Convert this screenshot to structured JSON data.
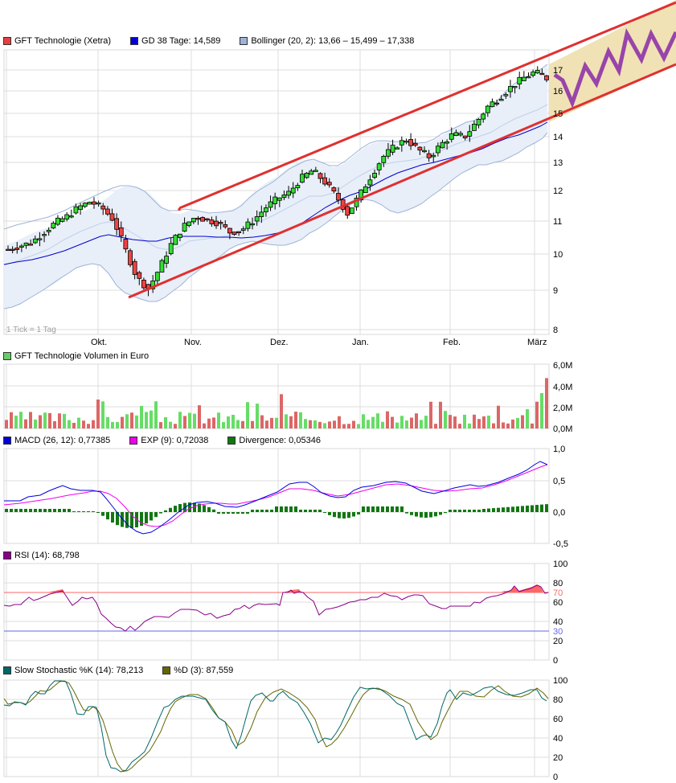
{
  "price_panel": {
    "legend": [
      {
        "label": "GFT Technologie (Xetra)",
        "color": "#e84040"
      },
      {
        "label": "GD 38 Tage: 14,589",
        "color": "#0000dd"
      },
      {
        "label": "Bollinger (20, 2): 13,66 – 15,499 – 17,338",
        "color": "#9fb3d8"
      }
    ],
    "tick_note": "1 Tick = 1 Tag",
    "y_ticks": [
      "17",
      "16",
      "15",
      "14",
      "13",
      "12",
      "11",
      "10",
      "9",
      "8"
    ],
    "x_ticks": [
      "Okt.",
      "Nov.",
      "Dez.",
      "Jan.",
      "Feb.",
      "März"
    ]
  },
  "volume_panel": {
    "legend": [
      {
        "label": "GFT Technologie Volumen in Euro",
        "color": "#66cc66"
      }
    ],
    "y_ticks": [
      "6,0M",
      "4,0M",
      "2,0M",
      "0,0M"
    ]
  },
  "macd_panel": {
    "legend": [
      {
        "label": "MACD (26, 12): 0,77385",
        "color": "#0000dd"
      },
      {
        "label": "EXP (9): 0,72038",
        "color": "#ee00ee"
      },
      {
        "label": "Divergence: 0,05346",
        "color": "#117711"
      }
    ],
    "y_ticks": [
      "1,0",
      "0,5",
      "0,0",
      "-0,5"
    ]
  },
  "rsi_panel": {
    "legend": [
      {
        "label": "RSI (14): 68,798",
        "color": "#880088"
      }
    ],
    "y_ticks": [
      "100",
      "80",
      "70",
      "60",
      "40",
      "30",
      "20",
      "0"
    ]
  },
  "stoch_panel": {
    "legend": [
      {
        "label": "Slow Stochastic %K (14): 78,213",
        "color": "#006666"
      },
      {
        "label": "%D (3): 87,559",
        "color": "#666600"
      }
    ],
    "y_ticks": [
      "100",
      "80",
      "60",
      "40",
      "20",
      "0"
    ]
  },
  "chart_data": [
    {
      "type": "candlestick",
      "title": "GFT Technologie (Xetra)",
      "xlabel": "",
      "ylabel": "",
      "x_ticks": [
        "Okt.",
        "Nov.",
        "Dez.",
        "Jan.",
        "Feb.",
        "März"
      ],
      "ylim": [
        8,
        17.5
      ],
      "y_scale": "log",
      "grid": true,
      "series": [
        {
          "name": "GFT Technologie (Xetra)",
          "approx_close_path": [
            10.1,
            10.2,
            10.3,
            10.6,
            10.9,
            11.1,
            11.4,
            11.6,
            11.4,
            11.0,
            10.1,
            9.3,
            9.0,
            9.6,
            10.3,
            10.8,
            11.1,
            11.0,
            10.9,
            10.6,
            10.7,
            11.0,
            11.4,
            11.7,
            11.9,
            12.4,
            12.7,
            12.3,
            11.8,
            11.2,
            11.8,
            12.5,
            13.2,
            13.6,
            13.9,
            13.5,
            13.2,
            13.7,
            14.1,
            14.0,
            14.6,
            15.3,
            15.7,
            16.2,
            16.6,
            16.9,
            16.6
          ],
          "last_value": 16.6
        },
        {
          "name": "GD 38 Tage",
          "last_value": 14.589
        },
        {
          "name": "Bollinger lower",
          "last_value": 13.66
        },
        {
          "name": "Bollinger middle",
          "last_value": 15.499
        },
        {
          "name": "Bollinger upper",
          "last_value": 17.338
        }
      ],
      "annotations": [
        {
          "type": "trend-channel",
          "color": "#e83030",
          "upper": {
            "from": [
              225,
              258
            ],
            "to": [
              841,
              0
            ]
          },
          "lower": {
            "from": [
              160,
              370
            ],
            "to": [
              841,
              80
            ]
          }
        },
        {
          "type": "projection-zigzag",
          "color": "#9944aa",
          "fill": "#f0e2b4"
        }
      ]
    },
    {
      "type": "bar",
      "title": "GFT Technologie Volumen in Euro",
      "ylim": [
        0,
        6000000
      ],
      "y_ticks": [
        "0,0M",
        "2,0M",
        "4,0M",
        "6,0M"
      ],
      "last_value_approx": 4700000,
      "peak_values_approx": [
        1800000,
        3300000,
        4700000
      ]
    },
    {
      "type": "line",
      "title": "MACD",
      "ylim": [
        -0.5,
        1.0
      ],
      "series": [
        {
          "name": "MACD (26, 12)",
          "last_value": 0.77385
        },
        {
          "name": "EXP (9)",
          "last_value": 0.72038
        },
        {
          "name": "Divergence",
          "last_value": 0.05346
        }
      ]
    },
    {
      "type": "line",
      "title": "RSI (14)",
      "ylim": [
        0,
        100
      ],
      "reference_lines": [
        70,
        30
      ],
      "series": [
        {
          "name": "RSI (14)",
          "last_value": 68.798
        }
      ]
    },
    {
      "type": "line",
      "title": "Slow Stochastic",
      "ylim": [
        0,
        100
      ],
      "series": [
        {
          "name": "Slow Stochastic %K (14)",
          "last_value": 78.213
        },
        {
          "name": "%D (3)",
          "last_value": 87.559
        }
      ]
    }
  ]
}
